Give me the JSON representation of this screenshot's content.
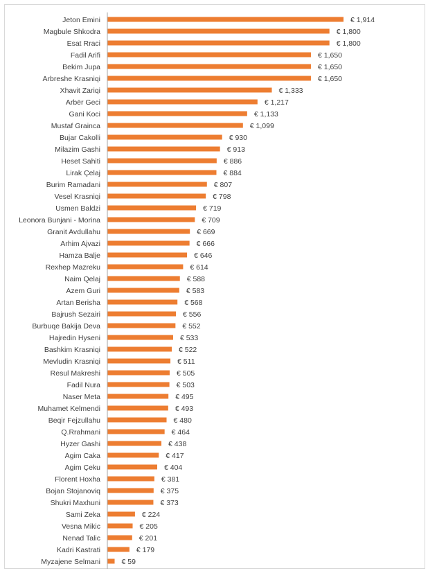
{
  "chart_data": {
    "type": "bar",
    "orientation": "horizontal",
    "value_prefix": "€ ",
    "bar_color": "#ED7D31",
    "axis_color": "#A6A6A6",
    "categories": [
      "Jeton Emini",
      "Magbule Shkodra",
      "Esat Rraci",
      "Fadil Arifi",
      "Bekim Jupa",
      "Arbreshe Krasniqi",
      "Xhavit Zariqi",
      "Arbër Geci",
      "Gani Koci",
      "Mustaf Grainca",
      "Bujar Cakolli",
      "Milazim Gashi",
      "Heset Sahiti",
      "Lirak Çelaj",
      "Burim Ramadani",
      "Vesel Krasniqi",
      "Usmen Baldzi",
      "Leonora Bunjani - Morina",
      "Granit Avdullahu",
      "Arhim Ajvazi",
      "Hamza Balje",
      "Rexhep Mazreku",
      "Naim Qelaj",
      "Azem Guri",
      "Artan Berisha",
      "Bajrush Sezairi",
      "Burbuqe Bakija Deva",
      "Hajredin Hyseni",
      "Bashkim Krasniqi",
      "Mevludin Krasniqi",
      "Resul Makreshi",
      "Fadil Nura",
      "Naser Meta",
      "Muhamet Kelmendi",
      "Beqir Fejzullahu",
      "Q.Rrahmani",
      "Hyzer Gashi",
      "Agim Caka",
      "Agim Çeku",
      "Florent Hoxha",
      "Bojan Stojanoviq",
      "Shukri Maxhuni",
      "Sami Zeka",
      "Vesna Mikic",
      "Nenad Talic",
      "Kadri Kastrati",
      "Myzajene Selmani"
    ],
    "values": [
      1914,
      1800,
      1800,
      1650,
      1650,
      1650,
      1333,
      1217,
      1133,
      1099,
      930,
      913,
      886,
      884,
      807,
      798,
      719,
      709,
      669,
      666,
      646,
      614,
      588,
      583,
      568,
      556,
      552,
      533,
      522,
      511,
      505,
      503,
      495,
      493,
      480,
      464,
      438,
      417,
      404,
      381,
      375,
      373,
      224,
      205,
      201,
      179,
      59
    ],
    "value_labels": [
      "€ 1,914",
      "€ 1,800",
      "€ 1,800",
      "€ 1,650",
      "€ 1,650",
      "€ 1,650",
      "€ 1,333",
      "€ 1,217",
      "€ 1,133",
      "€ 1,099",
      "€ 930",
      "€ 913",
      "€ 886",
      "€ 884",
      "€ 807",
      "€ 798",
      "€ 719",
      "€ 709",
      "€ 669",
      "€ 666",
      "€ 646",
      "€ 614",
      "€ 588",
      "€ 583",
      "€ 568",
      "€ 556",
      "€ 552",
      "€ 533",
      "€ 522",
      "€ 511",
      "€ 505",
      "€ 503",
      "€ 495",
      "€ 493",
      "€ 480",
      "€ 464",
      "€ 438",
      "€ 417",
      "€ 404",
      "€ 381",
      "€ 375",
      "€ 373",
      "€ 224",
      "€ 205",
      "€ 201",
      "€ 179",
      "€ 59"
    ],
    "xlim": [
      0,
      1914
    ],
    "grid": false,
    "legend": "none",
    "title": "",
    "xlabel": "",
    "ylabel": ""
  }
}
